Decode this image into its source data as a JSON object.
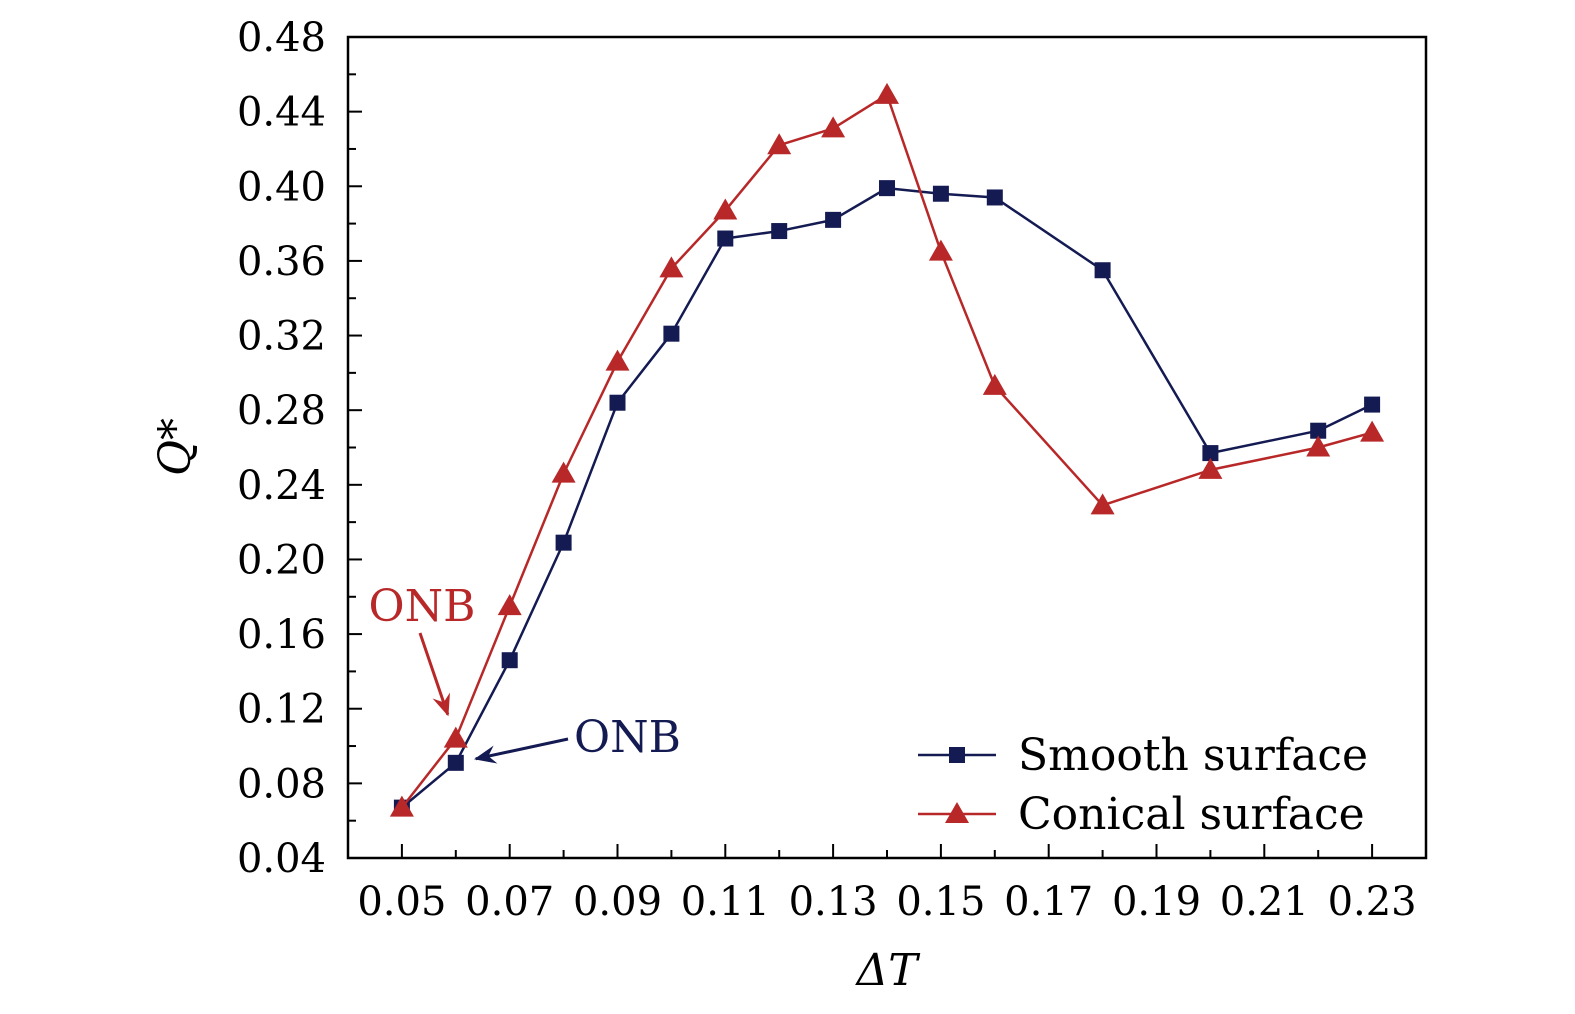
{
  "chart_data": {
    "type": "line",
    "title": "",
    "xlabel": "ΔT",
    "ylabel": "Q*",
    "xlim": [
      0.04,
      0.24
    ],
    "ylim": [
      0.04,
      0.48
    ],
    "xticks": [
      0.05,
      0.07,
      0.09,
      0.11,
      0.13,
      0.15,
      0.17,
      0.19,
      0.21,
      0.23
    ],
    "xtick_labels": [
      "0.05",
      "0.07",
      "0.09",
      "0.11",
      "0.13",
      "0.15",
      "0.17",
      "0.19",
      "0.21",
      "0.23"
    ],
    "yticks": [
      0.04,
      0.08,
      0.12,
      0.16,
      0.2,
      0.24,
      0.28,
      0.32,
      0.36,
      0.4,
      0.44,
      0.48
    ],
    "ytick_labels": [
      "0.04",
      "0.08",
      "0.12",
      "0.16",
      "0.20",
      "0.24",
      "0.28",
      "0.32",
      "0.36",
      "0.40",
      "0.44",
      "0.48"
    ],
    "grid": false,
    "legend_position": "bottom-right",
    "series": [
      {
        "name": "Smooth surface",
        "color": "#141a52",
        "marker": "square",
        "x": [
          0.05,
          0.06,
          0.07,
          0.08,
          0.09,
          0.1,
          0.11,
          0.12,
          0.13,
          0.14,
          0.15,
          0.16,
          0.18,
          0.2,
          0.22,
          0.23
        ],
        "y": [
          0.067,
          0.091,
          0.146,
          0.209,
          0.284,
          0.321,
          0.372,
          0.376,
          0.382,
          0.399,
          0.396,
          0.394,
          0.355,
          0.257,
          0.269,
          0.283
        ]
      },
      {
        "name": "Conical surface",
        "color": "#b82828",
        "marker": "triangle",
        "x": [
          0.05,
          0.06,
          0.07,
          0.08,
          0.09,
          0.1,
          0.11,
          0.12,
          0.13,
          0.14,
          0.15,
          0.16,
          0.18,
          0.2,
          0.22,
          0.23
        ],
        "y": [
          0.067,
          0.104,
          0.175,
          0.246,
          0.306,
          0.356,
          0.387,
          0.422,
          0.431,
          0.449,
          0.365,
          0.293,
          0.229,
          0.248,
          0.26,
          0.268
        ]
      }
    ],
    "annotations": [
      {
        "text": "ONB",
        "color": "#b82828",
        "target_x": 0.06,
        "target_y": 0.104
      },
      {
        "text": "ONB",
        "color": "#141a52",
        "target_x": 0.06,
        "target_y": 0.091
      }
    ]
  }
}
